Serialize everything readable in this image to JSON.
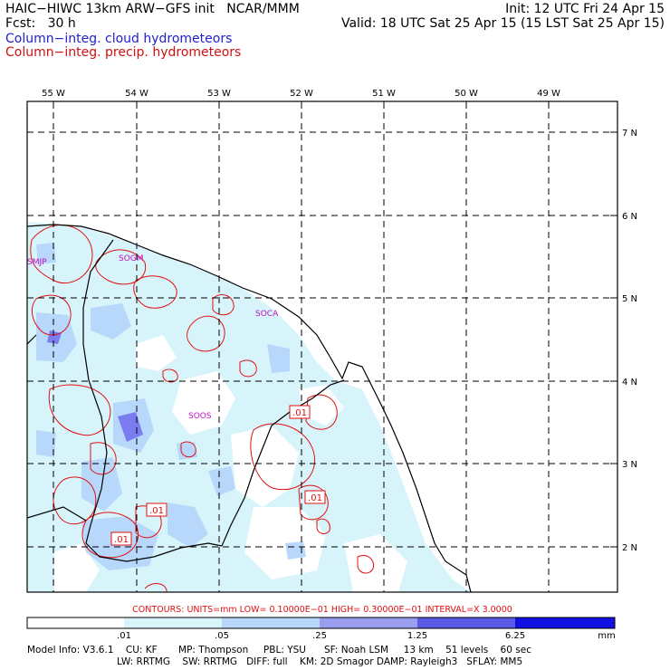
{
  "header": {
    "title": "HAIC−HIWC 13km ARW−GFS init   NCAR/MMM",
    "init": "Init: 12 UTC Fri 24 Apr 15",
    "fcst": "Fcst:   30 h",
    "valid": "Valid: 18 UTC Sat 25 Apr 15 (15 LST Sat 25 Apr 15)",
    "field1": "Column−integ. cloud hydrometeors",
    "field2": "Column−integ. precip. hydrometeors"
  },
  "map": {
    "lon_labels": [
      "55 W",
      "54 W",
      "53 W",
      "52 W",
      "51 W",
      "50 W",
      "49 W"
    ],
    "lat_labels": [
      "7 N",
      "6 N",
      "5 N",
      "4 N",
      "3 N",
      "2 N"
    ],
    "stations": [
      "SMJP",
      "SOGM",
      "SOCA",
      "SOOS"
    ],
    "contour_labels": [
      ".01",
      ".01",
      ".01",
      ".01"
    ]
  },
  "contours_info": "CONTOURS:  UNITS=mm  LOW= 0.10000E−01  HIGH= 0.30000E−01  INTERVAL=X  3.0000",
  "legend": {
    "ticks": [
      ".01",
      ".05",
      ".25",
      "1.25",
      "6.25"
    ],
    "unit": "mm",
    "colors": [
      "#ffffff",
      "#d8f4fb",
      "#b8d8fb",
      "#9a9cf0",
      "#5a5ae8",
      "#1010e0"
    ]
  },
  "model_info": {
    "line1": "Model Info: V3.6.1    CU: KF       MP: Thompson     PBL: YSU      SF: Noah LSM     13 km    51 levels    60 sec",
    "line2": "LW: RRTMG    SW: RRTMG   DIFF: full    KM: 2D Smagor DAMP: Rayleigh3   SFLAY: MM5"
  }
}
